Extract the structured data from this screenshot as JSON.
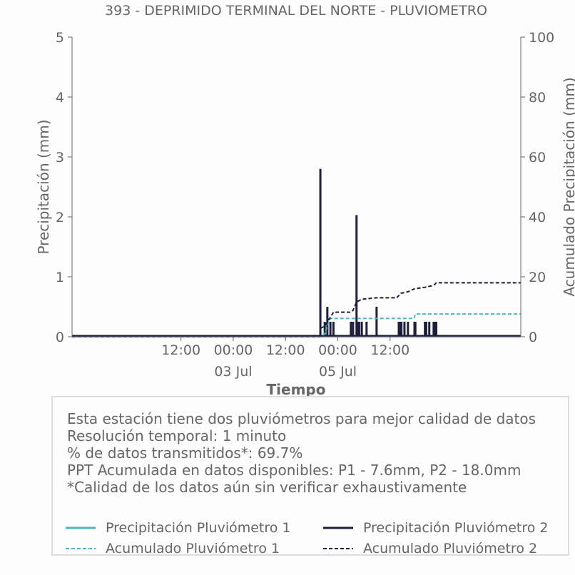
{
  "chart_data": {
    "type": "line",
    "title": "393 - DEPRIMIDO TERMINAL DEL NORTE - PLUVIOMETRO",
    "xlabel": "Tiempo",
    "ylabel": "Precipitación (mm)",
    "ylabel_right": "Acumulado Precipitación (mm)",
    "ylim": [
      0,
      5
    ],
    "ylim_right": [
      0,
      100
    ],
    "yticks": [
      0,
      1,
      2,
      3,
      4,
      5
    ],
    "yticks_right": [
      0,
      20,
      40,
      60,
      80,
      100
    ],
    "x_range_hours": [
      -13.0,
      90.0
    ],
    "x_unit": "hours from 02 Jul 00:00",
    "xticks": [
      {
        "hours": 12,
        "label": "12:00",
        "date": ""
      },
      {
        "hours": 24,
        "label": "00:00",
        "date": "03 Jul"
      },
      {
        "hours": 36,
        "label": "12:00",
        "date": ""
      },
      {
        "hours": 48,
        "label": "00:00",
        "date": "05 Jul"
      },
      {
        "hours": 60,
        "label": "12:00",
        "date": ""
      }
    ],
    "grid": false,
    "series": [
      {
        "name": "Precipitación Pluviómetro 1",
        "style": "solid",
        "axis": "left",
        "color": "#4fb3bf",
        "points": [
          [
            -13,
            0
          ],
          [
            90,
            0
          ]
        ]
      },
      {
        "name": "Precipitación Pluviómetro 2",
        "style": "solid",
        "axis": "left",
        "color": "#1e1f3c",
        "bars": [
          [
            -7.5,
            0.0
          ],
          [
            44.0,
            2.8
          ],
          [
            45.0,
            0.25
          ],
          [
            45.6,
            0.5
          ],
          [
            46.3,
            0.25
          ],
          [
            47.0,
            0.25
          ],
          [
            51.0,
            0.25
          ],
          [
            51.5,
            0.25
          ],
          [
            52.3,
            2.03
          ],
          [
            52.6,
            0.25
          ],
          [
            52.9,
            0.25
          ],
          [
            53.5,
            0.25
          ],
          [
            54.6,
            0.25
          ],
          [
            56.9,
            0.5
          ],
          [
            62.0,
            0.25
          ],
          [
            62.3,
            0.25
          ],
          [
            62.6,
            0.25
          ],
          [
            63.3,
            0.25
          ],
          [
            64.1,
            0.25
          ],
          [
            65.6,
            0.25
          ],
          [
            65.8,
            0.25
          ],
          [
            68.0,
            0.25
          ],
          [
            68.3,
            0.25
          ],
          [
            69.0,
            0.25
          ],
          [
            70.0,
            0.25
          ],
          [
            70.3,
            0.25
          ],
          [
            70.6,
            0.25
          ]
        ]
      },
      {
        "name": "Acumulado Pluviómetro 1",
        "style": "dashed",
        "axis": "right",
        "color": "#4fb3bf",
        "points": [
          [
            -13,
            0
          ],
          [
            44.0,
            0
          ],
          [
            45.0,
            1.0
          ],
          [
            45.6,
            3.5
          ],
          [
            46.3,
            6.1
          ],
          [
            65.5,
            6.1
          ],
          [
            65.8,
            7.6
          ],
          [
            90,
            7.6
          ]
        ]
      },
      {
        "name": "Acumulado Pluviómetro 2",
        "style": "dashed",
        "axis": "right",
        "color": "#1e1f3c",
        "points": [
          [
            -13,
            0
          ],
          [
            43.9,
            0
          ],
          [
            44.0,
            2.8
          ],
          [
            45.0,
            3.5
          ],
          [
            45.6,
            5.0
          ],
          [
            46.3,
            6.5
          ],
          [
            47.0,
            8.2
          ],
          [
            51.0,
            8.2
          ],
          [
            51.5,
            8.8
          ],
          [
            52.3,
            11.6
          ],
          [
            53.5,
            12.5
          ],
          [
            56.9,
            13.0
          ],
          [
            61.5,
            13.0
          ],
          [
            62.5,
            14.5
          ],
          [
            64.1,
            15.0
          ],
          [
            65.6,
            16.0
          ],
          [
            68.0,
            16.5
          ],
          [
            69.6,
            17.0
          ],
          [
            70.3,
            17.5
          ],
          [
            70.6,
            18.0
          ],
          [
            90,
            18.0
          ]
        ]
      }
    ],
    "legend": {
      "placement": "bottom",
      "entries": [
        "Precipitación Pluviómetro 1",
        "Precipitación Pluviómetro 2",
        "Acumulado Pluviómetro 1",
        "Acumulado Pluviómetro 2"
      ]
    }
  },
  "info": {
    "lines": [
      "Esta estación tiene dos pluviómetros para mejor calidad de datos",
      "Resolución temporal: 1 minuto",
      "% de datos transmitidos*: 69.7%",
      "PPT Acumulada en datos disponibles: P1 - 7.6mm, P2 - 18.0mm",
      "*Calidad de los datos aún sin verificar exhaustivamente"
    ]
  },
  "colors": {
    "series1": "#4fb3bf",
    "series2": "#1e1f3c",
    "text": "#666666",
    "axis": "#666666"
  }
}
